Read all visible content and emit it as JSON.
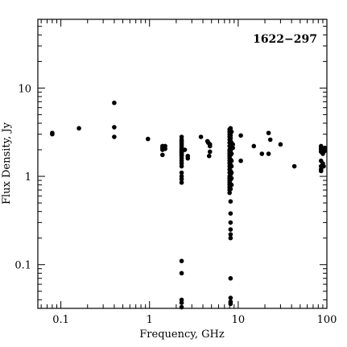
{
  "chart_data": {
    "type": "scatter",
    "annotation": "1622−297",
    "xlabel": "Frequency, GHz",
    "ylabel": "Flux Density, Jy",
    "xscale": "log",
    "yscale": "log",
    "xlim": [
      0.055,
      100
    ],
    "ylim": [
      0.032,
      60
    ],
    "grid": false,
    "legend": "none",
    "marker_color": "#000000",
    "x_ticks": [
      {
        "value": 0.1,
        "label": "0.1"
      },
      {
        "value": 1,
        "label": "1"
      },
      {
        "value": 10,
        "label": "10"
      },
      {
        "value": 100,
        "label": "100"
      }
    ],
    "y_ticks": [
      {
        "value": 0.1,
        "label": "0.1"
      },
      {
        "value": 1,
        "label": "1"
      },
      {
        "value": 10,
        "label": "10"
      }
    ],
    "points": [
      [
        0.08,
        3.0
      ],
      [
        0.08,
        3.1
      ],
      [
        0.16,
        3.5
      ],
      [
        0.4,
        6.8
      ],
      [
        0.4,
        3.6
      ],
      [
        0.4,
        2.8
      ],
      [
        0.96,
        2.65
      ],
      [
        1.4,
        2.2
      ],
      [
        1.4,
        2.1
      ],
      [
        1.4,
        2.0
      ],
      [
        1.4,
        1.75
      ],
      [
        1.5,
        2.2
      ],
      [
        1.5,
        2.05
      ],
      [
        2.3,
        2.8
      ],
      [
        2.3,
        2.6
      ],
      [
        2.3,
        2.5
      ],
      [
        2.3,
        2.4
      ],
      [
        2.3,
        2.3
      ],
      [
        2.3,
        2.2
      ],
      [
        2.3,
        2.1
      ],
      [
        2.3,
        2.0
      ],
      [
        2.3,
        1.95
      ],
      [
        2.3,
        1.9
      ],
      [
        2.3,
        1.85
      ],
      [
        2.3,
        1.8
      ],
      [
        2.3,
        1.75
      ],
      [
        2.3,
        1.7
      ],
      [
        2.3,
        1.6
      ],
      [
        2.3,
        1.5
      ],
      [
        2.3,
        1.4
      ],
      [
        2.3,
        1.3
      ],
      [
        2.3,
        1.1
      ],
      [
        2.3,
        1.0
      ],
      [
        2.3,
        0.93
      ],
      [
        2.3,
        0.85
      ],
      [
        2.3,
        0.11
      ],
      [
        2.3,
        0.08
      ],
      [
        2.3,
        0.04
      ],
      [
        2.3,
        0.037
      ],
      [
        2.3,
        0.033
      ],
      [
        2.5,
        2.0
      ],
      [
        2.7,
        1.7
      ],
      [
        2.7,
        1.6
      ],
      [
        3.8,
        2.8
      ],
      [
        4.5,
        2.5
      ],
      [
        4.6,
        2.4
      ],
      [
        4.8,
        2.3
      ],
      [
        4.8,
        2.2
      ],
      [
        4.8,
        1.9
      ],
      [
        4.7,
        1.7
      ],
      [
        8.0,
        3.4
      ],
      [
        8.0,
        3.2
      ],
      [
        8.0,
        3.0
      ],
      [
        8.0,
        2.8
      ],
      [
        8.0,
        2.6
      ],
      [
        8.0,
        2.4
      ],
      [
        8.0,
        2.2
      ],
      [
        8.0,
        2.0
      ],
      [
        8.0,
        1.9
      ],
      [
        8.0,
        1.8
      ],
      [
        8.0,
        1.7
      ],
      [
        8.0,
        1.6
      ],
      [
        8.0,
        1.5
      ],
      [
        8.0,
        1.4
      ],
      [
        8.0,
        1.3
      ],
      [
        8.0,
        1.2
      ],
      [
        8.0,
        1.1
      ],
      [
        8.0,
        1.0
      ],
      [
        8.0,
        0.95
      ],
      [
        8.0,
        0.9
      ],
      [
        8.0,
        0.85
      ],
      [
        8.0,
        0.8
      ],
      [
        8.0,
        0.75
      ],
      [
        8.0,
        0.7
      ],
      [
        8.0,
        0.65
      ],
      [
        8.2,
        3.5
      ],
      [
        8.2,
        3.1
      ],
      [
        8.2,
        2.9
      ],
      [
        8.2,
        2.7
      ],
      [
        8.2,
        2.5
      ],
      [
        8.2,
        2.3
      ],
      [
        8.2,
        2.1
      ],
      [
        8.2,
        1.95
      ],
      [
        8.2,
        1.75
      ],
      [
        8.2,
        1.55
      ],
      [
        8.2,
        1.35
      ],
      [
        8.2,
        1.15
      ],
      [
        8.2,
        1.05
      ],
      [
        8.2,
        0.92
      ],
      [
        8.2,
        0.82
      ],
      [
        8.2,
        0.72
      ],
      [
        8.2,
        0.52
      ],
      [
        8.2,
        0.38
      ],
      [
        8.2,
        0.3
      ],
      [
        8.2,
        0.25
      ],
      [
        8.2,
        0.22
      ],
      [
        8.2,
        0.2
      ],
      [
        8.2,
        0.07
      ],
      [
        8.2,
        0.042
      ],
      [
        8.2,
        0.038
      ],
      [
        8.2,
        0.036
      ],
      [
        8.4,
        3.2
      ],
      [
        8.4,
        2.4
      ],
      [
        8.4,
        1.8
      ],
      [
        8.4,
        1.5
      ],
      [
        8.4,
        1.3
      ],
      [
        8.4,
        1.1
      ],
      [
        8.4,
        0.95
      ],
      [
        8.4,
        0.8
      ],
      [
        8.7,
        2.3
      ],
      [
        8.7,
        2.1
      ],
      [
        10.7,
        2.9
      ],
      [
        10.7,
        1.5
      ],
      [
        15,
        2.2
      ],
      [
        18.5,
        1.8
      ],
      [
        22,
        3.1
      ],
      [
        22,
        1.8
      ],
      [
        23,
        2.6
      ],
      [
        30,
        2.3
      ],
      [
        43,
        1.3
      ],
      [
        86,
        2.2
      ],
      [
        86,
        2.1
      ],
      [
        86,
        2.0
      ],
      [
        86,
        1.9
      ],
      [
        86,
        1.5
      ],
      [
        86,
        1.3
      ],
      [
        86,
        1.2
      ],
      [
        86,
        1.15
      ],
      [
        90,
        2.0
      ],
      [
        90,
        1.8
      ],
      [
        90,
        1.4
      ],
      [
        92,
        1.9
      ],
      [
        92,
        1.3
      ],
      [
        95,
        2.1
      ],
      [
        95,
        1.95
      ]
    ]
  }
}
